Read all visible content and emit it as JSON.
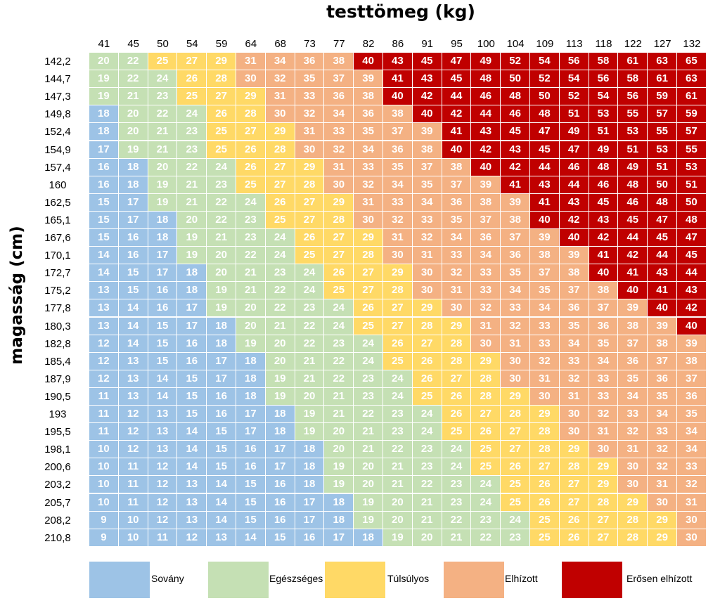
{
  "chart_data": {
    "type": "heatmap",
    "xlabel": "testtömeg (kg)",
    "ylabel": "magasság (cm)",
    "x": [
      "41",
      "45",
      "50",
      "54",
      "59",
      "64",
      "68",
      "73",
      "77",
      "82",
      "86",
      "91",
      "95",
      "100",
      "104",
      "109",
      "113",
      "118",
      "122",
      "127",
      "132"
    ],
    "y": [
      "142,2",
      "144,7",
      "147,3",
      "149,8",
      "152,4",
      "154,9",
      "157,4",
      "160",
      "162,5",
      "165,1",
      "167,6",
      "170,1",
      "172,7",
      "175,2",
      "177,8",
      "180,3",
      "182,8",
      "185,4",
      "187,9",
      "190,5",
      "193",
      "195,5",
      "198,1",
      "200,6",
      "203,2",
      "205,7",
      "208,2",
      "210,8"
    ],
    "values": [
      [
        20,
        22,
        25,
        27,
        29,
        31,
        34,
        36,
        38,
        40,
        43,
        45,
        47,
        49,
        52,
        54,
        56,
        58,
        61,
        63,
        65
      ],
      [
        19,
        22,
        24,
        26,
        28,
        30,
        32,
        35,
        37,
        39,
        41,
        43,
        45,
        48,
        50,
        52,
        54,
        56,
        58,
        61,
        63
      ],
      [
        19,
        21,
        23,
        25,
        27,
        29,
        31,
        33,
        36,
        38,
        40,
        42,
        44,
        46,
        48,
        50,
        52,
        54,
        56,
        59,
        61
      ],
      [
        18,
        20,
        22,
        24,
        26,
        28,
        30,
        32,
        34,
        36,
        38,
        40,
        42,
        44,
        46,
        48,
        51,
        53,
        55,
        57,
        59
      ],
      [
        18,
        20,
        21,
        23,
        25,
        27,
        29,
        31,
        33,
        35,
        37,
        39,
        41,
        43,
        45,
        47,
        49,
        51,
        53,
        55,
        57
      ],
      [
        17,
        19,
        21,
        23,
        25,
        26,
        28,
        30,
        32,
        34,
        36,
        38,
        40,
        42,
        43,
        45,
        47,
        49,
        51,
        53,
        55
      ],
      [
        16,
        18,
        20,
        22,
        24,
        26,
        27,
        29,
        31,
        33,
        35,
        37,
        38,
        40,
        42,
        44,
        46,
        48,
        49,
        51,
        53
      ],
      [
        16,
        18,
        19,
        21,
        23,
        25,
        27,
        28,
        30,
        32,
        34,
        35,
        37,
        39,
        41,
        43,
        44,
        46,
        48,
        50,
        51
      ],
      [
        15,
        17,
        19,
        21,
        22,
        24,
        26,
        27,
        29,
        31,
        33,
        34,
        36,
        38,
        39,
        41,
        43,
        45,
        46,
        48,
        50
      ],
      [
        15,
        17,
        18,
        20,
        22,
        23,
        25,
        27,
        28,
        30,
        32,
        33,
        35,
        37,
        38,
        40,
        42,
        43,
        45,
        47,
        48
      ],
      [
        15,
        16,
        18,
        19,
        21,
        23,
        24,
        26,
        27,
        29,
        31,
        32,
        34,
        36,
        37,
        39,
        40,
        42,
        44,
        45,
        47
      ],
      [
        14,
        16,
        17,
        19,
        20,
        22,
        24,
        25,
        27,
        28,
        30,
        31,
        33,
        34,
        36,
        38,
        39,
        41,
        42,
        44,
        45
      ],
      [
        14,
        15,
        17,
        18,
        20,
        21,
        23,
        24,
        26,
        27,
        29,
        30,
        32,
        33,
        35,
        37,
        38,
        40,
        41,
        43,
        44
      ],
      [
        13,
        15,
        16,
        18,
        19,
        21,
        22,
        24,
        25,
        27,
        28,
        30,
        31,
        33,
        34,
        35,
        37,
        38,
        40,
        41,
        43
      ],
      [
        13,
        14,
        16,
        17,
        19,
        20,
        22,
        23,
        24,
        26,
        27,
        29,
        30,
        32,
        33,
        34,
        36,
        37,
        39,
        40,
        42
      ],
      [
        13,
        14,
        15,
        17,
        18,
        20,
        21,
        22,
        24,
        25,
        27,
        28,
        29,
        31,
        32,
        33,
        35,
        36,
        38,
        39,
        40
      ],
      [
        12,
        14,
        15,
        16,
        18,
        19,
        20,
        22,
        23,
        24,
        26,
        27,
        28,
        30,
        31,
        33,
        34,
        35,
        37,
        38,
        39
      ],
      [
        12,
        13,
        15,
        16,
        17,
        18,
        20,
        21,
        22,
        24,
        25,
        26,
        28,
        29,
        30,
        32,
        33,
        34,
        36,
        37,
        38
      ],
      [
        12,
        13,
        14,
        15,
        17,
        18,
        19,
        21,
        22,
        23,
        24,
        26,
        27,
        28,
        30,
        31,
        32,
        33,
        35,
        36,
        37
      ],
      [
        11,
        13,
        14,
        15,
        16,
        18,
        19,
        20,
        21,
        23,
        24,
        25,
        26,
        28,
        29,
        30,
        31,
        33,
        34,
        35,
        36
      ],
      [
        11,
        12,
        13,
        15,
        16,
        17,
        18,
        19,
        21,
        22,
        23,
        24,
        26,
        27,
        28,
        29,
        30,
        32,
        33,
        34,
        35
      ],
      [
        11,
        12,
        13,
        14,
        15,
        17,
        18,
        19,
        20,
        21,
        23,
        24,
        25,
        26,
        27,
        28,
        30,
        31,
        32,
        33,
        34
      ],
      [
        10,
        12,
        13,
        14,
        15,
        16,
        17,
        18,
        20,
        21,
        22,
        23,
        24,
        25,
        27,
        28,
        29,
        30,
        31,
        32,
        34
      ],
      [
        10,
        11,
        12,
        14,
        15,
        16,
        17,
        18,
        19,
        20,
        21,
        23,
        24,
        25,
        26,
        27,
        28,
        29,
        30,
        32,
        33
      ],
      [
        10,
        11,
        12,
        13,
        14,
        15,
        16,
        18,
        19,
        20,
        21,
        22,
        23,
        24,
        25,
        26,
        27,
        29,
        30,
        31,
        32
      ],
      [
        10,
        11,
        12,
        13,
        14,
        15,
        16,
        17,
        18,
        19,
        20,
        21,
        23,
        24,
        25,
        26,
        27,
        28,
        29,
        30,
        31
      ],
      [
        9,
        10,
        12,
        13,
        14,
        15,
        16,
        17,
        18,
        19,
        20,
        21,
        22,
        23,
        24,
        25,
        26,
        27,
        28,
        29,
        30
      ],
      [
        9,
        10,
        11,
        12,
        13,
        14,
        15,
        16,
        17,
        18,
        19,
        20,
        21,
        22,
        23,
        25,
        26,
        27,
        28,
        29,
        30
      ]
    ],
    "categories": [
      {
        "name": "Sovány",
        "range": [
          0,
          18
        ],
        "color": "#9DC3E6"
      },
      {
        "name": "Egészséges",
        "range": [
          18,
          24
        ],
        "color": "#C5E0B4"
      },
      {
        "name": "Túlsúlyos",
        "range": [
          25,
          29
        ],
        "color": "#FFD966"
      },
      {
        "name": "Elhízott",
        "range": [
          30,
          39
        ],
        "color": "#F4B183"
      },
      {
        "name": "Erősen elhízott",
        "range": [
          40,
          99
        ],
        "color": "#C00000"
      }
    ],
    "legend": "bottom"
  }
}
